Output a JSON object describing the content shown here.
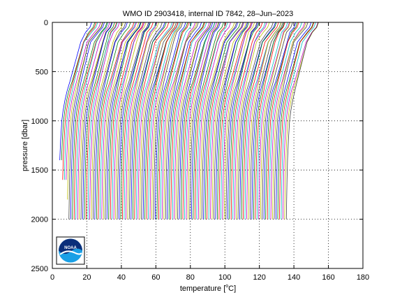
{
  "chart_data": {
    "type": "line",
    "title": "WMO ID 2903418, internal ID 7842, 28–Jun–2023",
    "xlabel_prefix": "temperature [",
    "xlabel_unit": "o",
    "xlabel_suffix": "C]",
    "ylabel": "pressure [dbar]",
    "xlim": [
      0,
      180
    ],
    "ylim": [
      0,
      2500
    ],
    "y_reversed": true,
    "grid": true,
    "x_ticks": [
      0,
      20,
      40,
      60,
      80,
      100,
      120,
      140,
      160,
      180
    ],
    "y_ticks": [
      0,
      500,
      1000,
      1500,
      2000,
      2500
    ],
    "layout_note": "waterfall",
    "profiles": {
      "count": 133,
      "offset_step": 1,
      "first_offset": 0,
      "series_colors": [
        "#0000ff",
        "#008000",
        "#ff0000",
        "#00bfbf",
        "#bf00bf",
        "#bfbf00",
        "#404040"
      ],
      "shape": {
        "pressure": [
          0,
          50,
          100,
          200,
          300,
          400,
          500,
          600,
          700,
          800,
          900,
          1000,
          1200,
          1400,
          1600,
          1800,
          2000
        ],
        "temperature": [
          22.5,
          21.5,
          19.0,
          16.0,
          14.5,
          13.0,
          11.5,
          10.0,
          8.5,
          7.2,
          6.2,
          5.5,
          4.8,
          4.3,
          4.0,
          3.8,
          3.6
        ]
      }
    }
  },
  "logo": {
    "name": "NOAA",
    "text": "NOAA"
  },
  "colors": {
    "axis": "#000000",
    "grid": "#000000",
    "background": "#ffffff"
  }
}
